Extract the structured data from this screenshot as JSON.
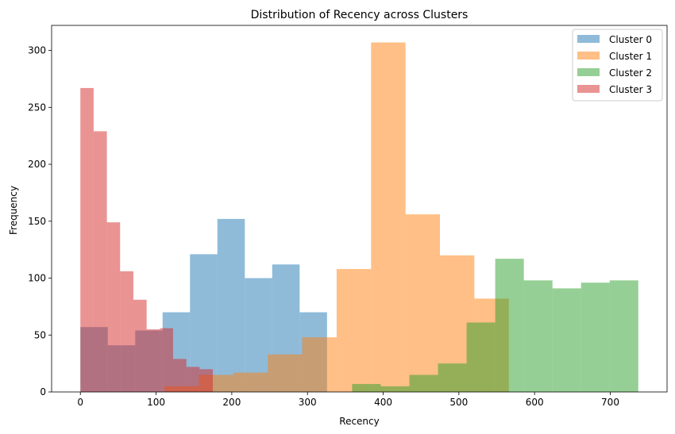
{
  "chart_data": {
    "type": "histogram",
    "title": "Distribution of Recency across Clusters",
    "xlabel": "Recency",
    "ylabel": "Frequency",
    "xlim": [
      -38,
      775
    ],
    "ylim": [
      0,
      322
    ],
    "xticks": [
      0,
      100,
      200,
      300,
      400,
      500,
      600,
      700
    ],
    "yticks": [
      0,
      50,
      100,
      150,
      200,
      250,
      300
    ],
    "grid": false,
    "legend_position": "top-right",
    "bar_opacity": 0.5,
    "series": [
      {
        "name": "Cluster 0",
        "color": "#1f77b4",
        "bin_edges": [
          0,
          36.2,
          72.4,
          108.6,
          144.8,
          181,
          217.2,
          253.4,
          289.6,
          325.8
        ],
        "counts": [
          57,
          41,
          54,
          70,
          121,
          152,
          100,
          112,
          70
        ]
      },
      {
        "name": "Cluster 1",
        "color": "#ff7f0e",
        "bin_edges": [
          111,
          156.5,
          202,
          247.5,
          293,
          338.5,
          384,
          429.5,
          475,
          520.5,
          566
        ],
        "counts": [
          5,
          15,
          17,
          33,
          48,
          108,
          307,
          156,
          120,
          82
        ]
      },
      {
        "name": "Cluster 2",
        "color": "#2ca02c",
        "bin_edges": [
          359,
          396.8,
          434.6,
          472.4,
          510.2,
          548,
          585.8,
          623.6,
          661.4,
          699.2,
          737
        ],
        "counts": [
          7,
          5,
          15,
          25,
          61,
          117,
          98,
          91,
          96,
          98
        ]
      },
      {
        "name": "Cluster 3",
        "color": "#d62728",
        "bin_edges": [
          0,
          17.5,
          35,
          52.5,
          70,
          87.5,
          105,
          122.5,
          140,
          157.5,
          175
        ],
        "counts": [
          267,
          229,
          149,
          106,
          81,
          55,
          56,
          29,
          22,
          20
        ]
      }
    ]
  }
}
